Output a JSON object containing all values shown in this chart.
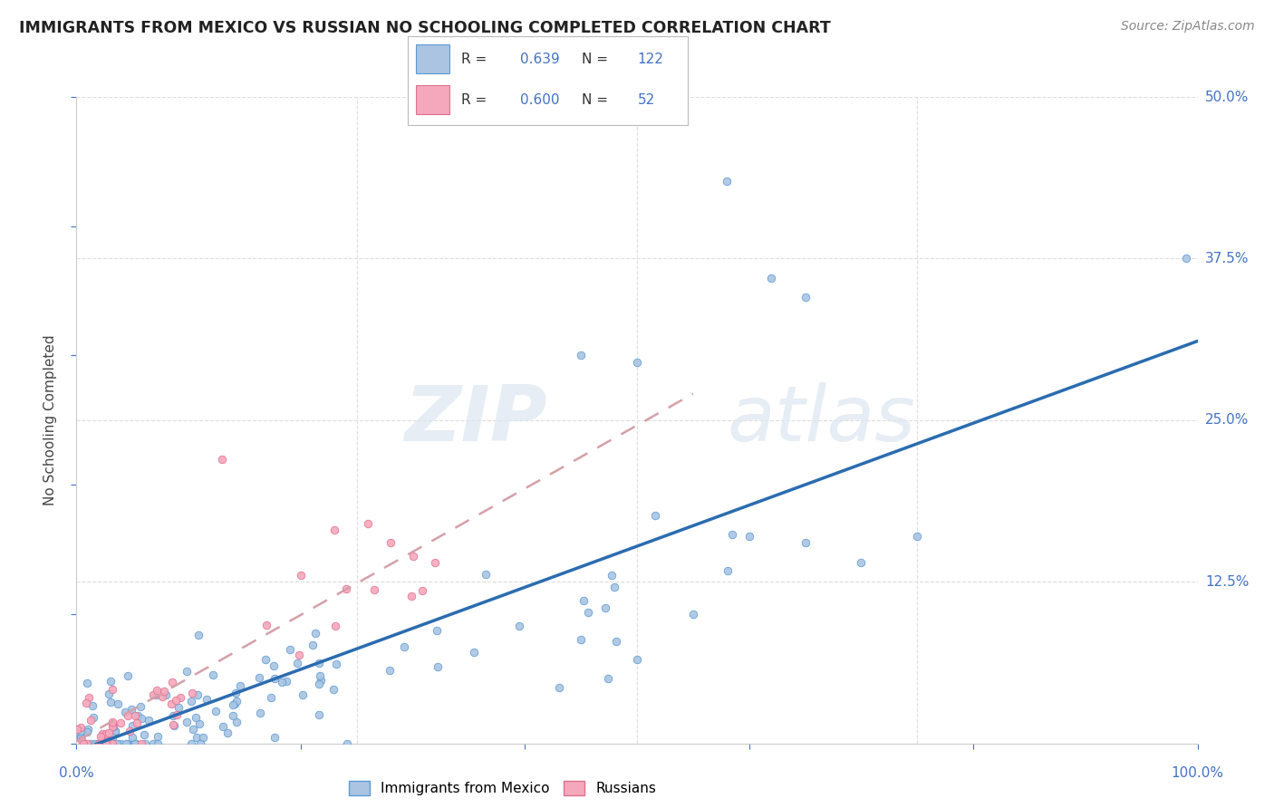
{
  "title": "IMMIGRANTS FROM MEXICO VS RUSSIAN NO SCHOOLING COMPLETED CORRELATION CHART",
  "source": "Source: ZipAtlas.com",
  "ylabel": "No Schooling Completed",
  "legend_label1": "Immigrants from Mexico",
  "legend_label2": "Russians",
  "R1": 0.639,
  "N1": 122,
  "R2": 0.6,
  "N2": 52,
  "color1": "#aac4e2",
  "color2": "#f5a8bb",
  "edge_color1": "#5b9bd5",
  "edge_color2": "#e07090",
  "line_color1": "#2b6cb0",
  "line_color2": "#ccaaaa",
  "title_color": "#222222",
  "axis_label_color": "#444444",
  "tick_color": "#4472c4",
  "source_color": "#888888",
  "background_color": "#ffffff",
  "grid_color": "#dddddd",
  "xlim": [
    0.0,
    1.0
  ],
  "ylim": [
    0.0,
    0.5
  ],
  "xticks": [
    0.0,
    0.25,
    0.5,
    0.75,
    1.0
  ],
  "yticks": [
    0.0,
    0.125,
    0.25,
    0.375,
    0.5
  ],
  "xticklabels_left": "0.0%",
  "xticklabels_right": "100.0%",
  "yticklabels": [
    "50.0%",
    "37.5%",
    "25.0%",
    "12.5%",
    ""
  ],
  "watermark_zip": "ZIP",
  "watermark_atlas": "atlas"
}
